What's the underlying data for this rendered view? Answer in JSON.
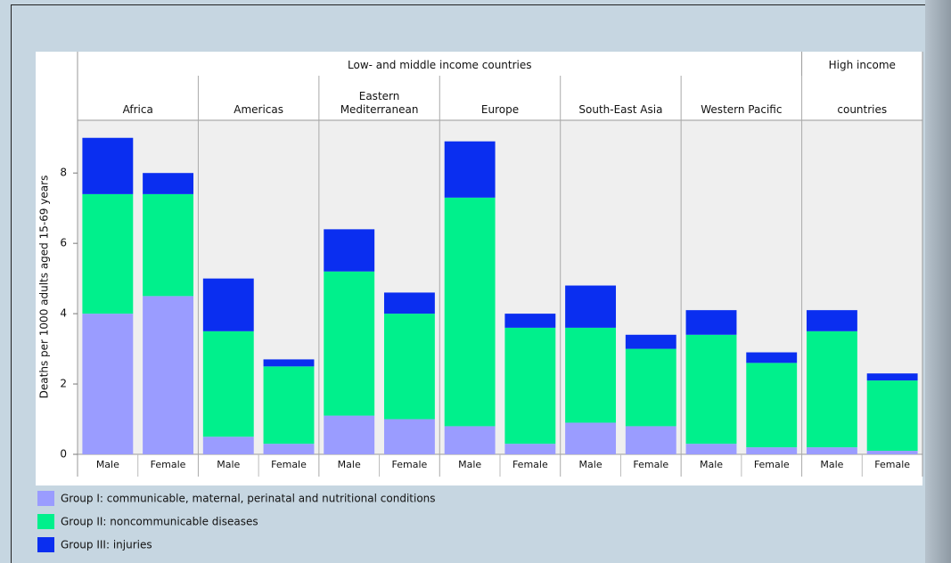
{
  "chart_data": {
    "type": "stacked-bar",
    "y_label": "Deaths per 1000 adults aged 15-69 years",
    "super_groups": [
      "Low- and middle income countries",
      "High income"
    ],
    "regions": [
      "Africa",
      "Americas",
      "Eastern Mediterranean",
      "Europe",
      "South-East Asia",
      "Western Pacific",
      "countries"
    ],
    "categories": [
      "Male",
      "Female",
      "Male",
      "Female",
      "Male",
      "Female",
      "Male",
      "Female",
      "Male",
      "Female",
      "Male",
      "Female",
      "Male",
      "Female"
    ],
    "series": [
      {
        "name": "Group I: communicable, maternal, perinatal and nutritional conditions",
        "color": "#9a9cff",
        "values": [
          4.0,
          4.5,
          0.5,
          0.3,
          1.1,
          1.0,
          0.8,
          0.3,
          0.9,
          0.8,
          0.3,
          0.2,
          0.2,
          0.1
        ]
      },
      {
        "name": "Group II: noncommunicable diseases",
        "color": "#00f08c",
        "values": [
          3.4,
          2.9,
          3.0,
          2.2,
          4.1,
          3.0,
          6.5,
          3.3,
          2.7,
          2.2,
          3.1,
          2.4,
          3.3,
          2.0
        ]
      },
      {
        "name": "Group III: injuries",
        "color": "#0a2ef0",
        "values": [
          1.6,
          0.6,
          1.5,
          0.2,
          1.2,
          0.6,
          1.6,
          0.4,
          1.2,
          0.4,
          0.7,
          0.3,
          0.6,
          0.2
        ]
      }
    ],
    "ylim": [
      0,
      9.5
    ],
    "yticks": [
      0,
      2,
      4,
      6,
      8
    ]
  }
}
